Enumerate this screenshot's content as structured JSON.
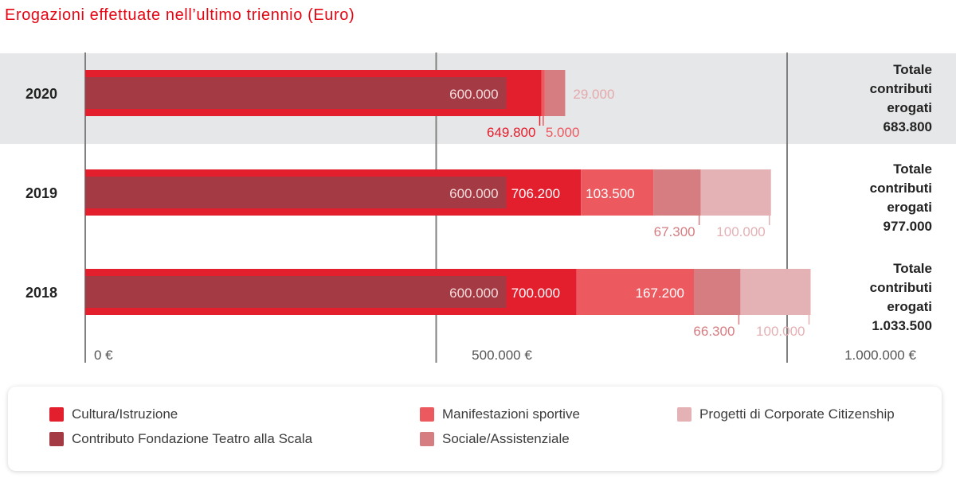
{
  "chart_data": {
    "type": "bar",
    "title": "Erogazioni effettuate nell’ultimo triennio (Euro)",
    "orientation": "horizontal",
    "stacked": true,
    "xlim": [
      0,
      1000000
    ],
    "x_ticks": [
      {
        "value": 0,
        "label": "0 €"
      },
      {
        "value": 500000,
        "label": "500.000 €"
      },
      {
        "value": 1000000,
        "label": "1.000.000 €"
      }
    ],
    "grid": true,
    "legend_position": "bottom",
    "categories": [
      "2020",
      "2019",
      "2018"
    ],
    "highlighted_category": "2020",
    "series": [
      {
        "name": "Cultura/Istruzione",
        "color": "#e31e2d",
        "values": [
          649800,
          706200,
          700000
        ],
        "labels": [
          "649.800",
          "706.200",
          "700.000"
        ]
      },
      {
        "name": "Manifestazioni sportive",
        "color": "#ec5a60",
        "values": [
          5000,
          103500,
          167200
        ],
        "labels": [
          "5.000",
          "103.500",
          "167.200"
        ]
      },
      {
        "name": "Sociale/Assistenziale",
        "color": "#d67d82",
        "values": [
          29000,
          67300,
          66300
        ],
        "labels": [
          "29.000",
          "67.300",
          "66.300"
        ]
      },
      {
        "name": "Progetti di Corporate Citizenship",
        "color": "#e4b1b5",
        "values": [
          0,
          100000,
          100000
        ],
        "labels": [
          "",
          "100.000",
          "100.000"
        ]
      }
    ],
    "overlay_series": {
      "name": "Contributo Fondazione Teatro alla Scala",
      "color": "#a43a44",
      "values": [
        600000,
        600000,
        600000
      ],
      "labels": [
        "600.000",
        "600.000",
        "600.000"
      ]
    },
    "totals": [
      {
        "category": "2020",
        "lines": [
          "Totale",
          "contributi",
          "erogati",
          "683.800"
        ]
      },
      {
        "category": "2019",
        "lines": [
          "Totale",
          "contributi",
          "erogati",
          "977.000"
        ]
      },
      {
        "category": "2018",
        "lines": [
          "Totale",
          "contributi",
          "erogati",
          "1.033.500"
        ]
      }
    ]
  },
  "legend": {
    "items": [
      {
        "label": "Cultura/Istruzione",
        "color": "#e31e2d"
      },
      {
        "label": "Contributo Fondazione Teatro alla Scala",
        "color": "#a43a44"
      },
      {
        "label": "Manifestazioni sportive",
        "color": "#ec5a60"
      },
      {
        "label": "Sociale/Assistenziale",
        "color": "#d67d82"
      },
      {
        "label": "Progetti di Corporate Citizenship",
        "color": "#e4b1b5"
      }
    ]
  }
}
